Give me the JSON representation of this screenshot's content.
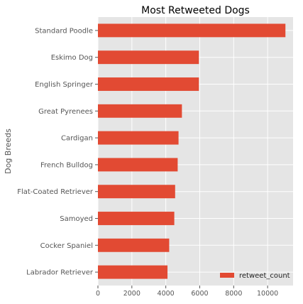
{
  "chart_data": {
    "type": "bar",
    "orientation": "horizontal",
    "title": "Most Retweeted Dogs",
    "xlabel": "",
    "ylabel": "Dog Breeds",
    "categories": [
      "Standard Poodle",
      "Eskimo Dog",
      "English Springer",
      "Great Pyrenees",
      "Cardigan",
      "French Bulldog",
      "Flat-Coated Retriever",
      "Samoyed",
      "Cocker Spaniel",
      "Labrador Retriever"
    ],
    "series": [
      {
        "name": "retweet_count",
        "values": [
          11050,
          5950,
          5950,
          4950,
          4750,
          4700,
          4550,
          4500,
          4200,
          4100
        ]
      }
    ],
    "xlim": [
      0,
      11500
    ],
    "xticks": [
      0,
      2000,
      4000,
      6000,
      8000,
      10000
    ],
    "xtick_labels": [
      "0",
      "2000",
      "4000",
      "6000",
      "8000",
      "10000"
    ],
    "grid": true,
    "legend_position": "bottom-right"
  },
  "colors": {
    "bar": "#E24A33",
    "plot_background": "#E5E5E5",
    "grid": "#FFFFFF",
    "text": "#555555",
    "title": "#000000"
  }
}
